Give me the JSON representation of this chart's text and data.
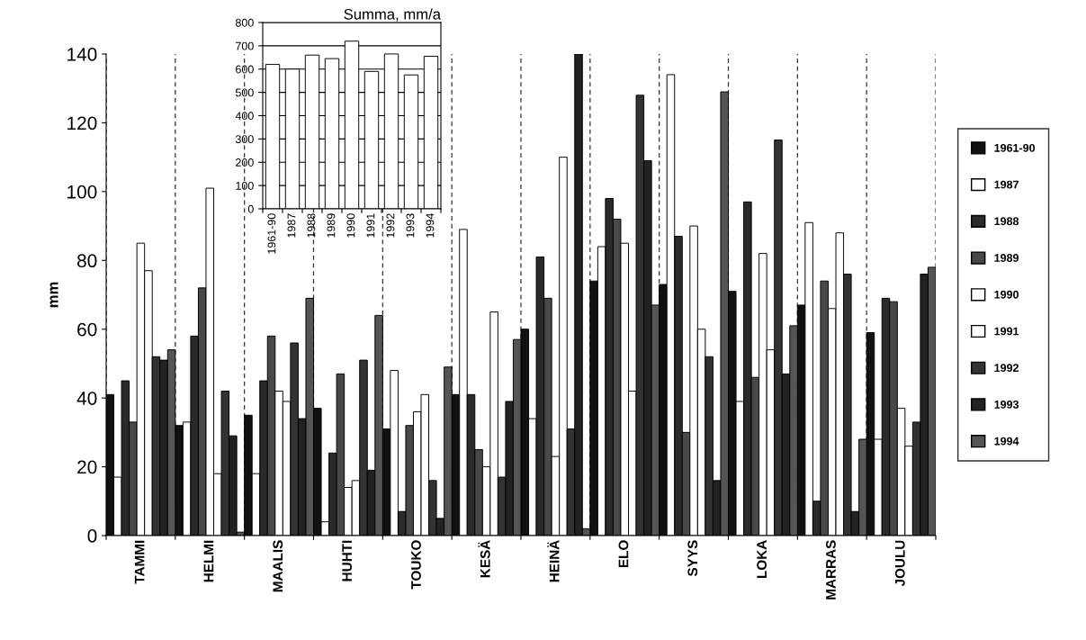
{
  "chart_data": [
    {
      "type": "bar",
      "ylabel": "mm",
      "categories": [
        "TAMMI",
        "HELMI",
        "MAALIS",
        "HUHTI",
        "TOUKO",
        "KESÄ",
        "HEINÄ",
        "ELO",
        "SYYS",
        "LOKA",
        "MARRAS",
        "JOULU"
      ],
      "ylim": [
        0,
        140
      ],
      "yticks": [
        0,
        20,
        40,
        60,
        80,
        100,
        120,
        140
      ],
      "grid": "x",
      "legend": "right",
      "series": [
        {
          "name": "1961-90",
          "color": "#111111",
          "values": [
            41,
            32,
            35,
            37,
            31,
            41,
            60,
            74,
            73,
            71,
            67,
            59
          ]
        },
        {
          "name": "1987",
          "color": "#ffffff",
          "values": [
            17,
            33,
            18,
            4,
            48,
            89,
            34,
            84,
            134,
            39,
            91,
            28
          ]
        },
        {
          "name": "1988",
          "color": "#2a2a2a",
          "values": [
            45,
            58,
            45,
            24,
            7,
            41,
            81,
            98,
            87,
            97,
            10,
            69
          ]
        },
        {
          "name": "1989",
          "color": "#484848",
          "values": [
            33,
            72,
            58,
            47,
            32,
            25,
            69,
            92,
            30,
            46,
            74,
            68
          ]
        },
        {
          "name": "1990",
          "color": "#ffffff",
          "values": [
            85,
            101,
            42,
            14,
            36,
            20,
            23,
            85,
            90,
            82,
            66,
            37
          ]
        },
        {
          "name": "1991",
          "color": "#ffffff",
          "values": [
            77,
            18,
            39,
            16,
            41,
            65,
            110,
            42,
            60,
            54,
            88,
            26
          ]
        },
        {
          "name": "1992",
          "color": "#333333",
          "values": [
            52,
            42,
            56,
            51,
            16,
            17,
            31,
            128,
            52,
            115,
            76,
            33
          ]
        },
        {
          "name": "1993",
          "color": "#222222",
          "values": [
            51,
            29,
            34,
            19,
            5,
            39,
            140,
            109,
            16,
            47,
            7,
            76
          ]
        },
        {
          "name": "1994",
          "color": "#555555",
          "values": [
            54,
            1,
            69,
            64,
            49,
            57,
            2,
            67,
            129,
            61,
            28,
            78
          ]
        }
      ]
    },
    {
      "type": "bar",
      "title": "Summa, mm/a",
      "categories": [
        "1961-90",
        "1987",
        "1988",
        "1989",
        "1990",
        "1991",
        "1992",
        "1993",
        "1994"
      ],
      "values": [
        620,
        600,
        660,
        645,
        720,
        590,
        665,
        575,
        655
      ],
      "color": "#ffffff",
      "ylim": [
        0,
        800
      ],
      "yticks": [
        0,
        100,
        200,
        300,
        400,
        500,
        600,
        700,
        800
      ],
      "grid": "y"
    }
  ]
}
